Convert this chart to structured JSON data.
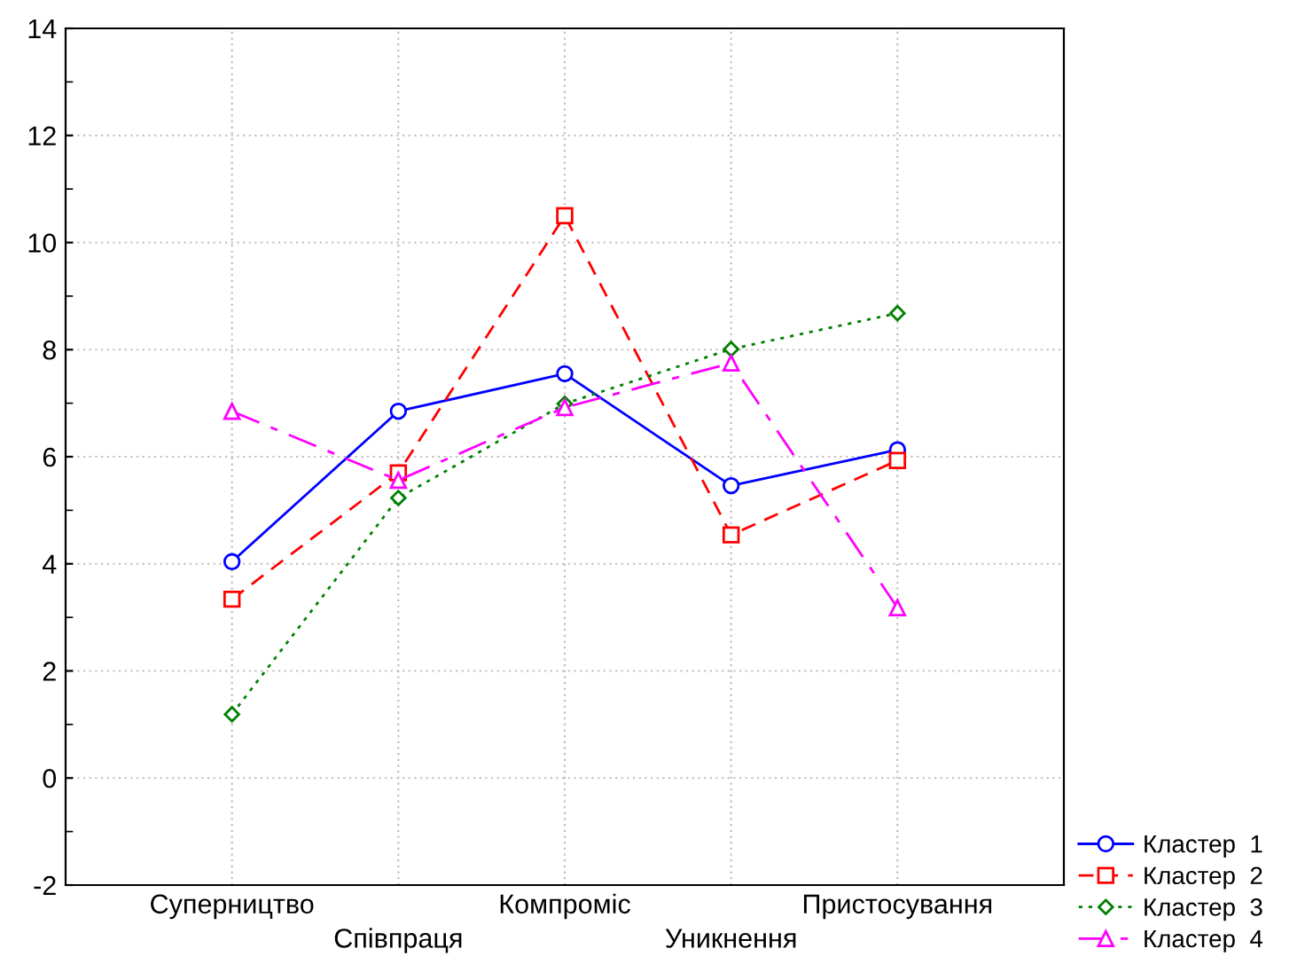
{
  "chart_data": {
    "type": "line",
    "categories": [
      "Суперництво",
      "Співпраця",
      "Компроміс",
      "Уникнення",
      "Пристосування"
    ],
    "series": [
      {
        "name": "Кластер  1",
        "color": "#0000ff",
        "marker": "circle",
        "line_style": "solid",
        "values": [
          4.04,
          6.85,
          7.55,
          5.46,
          6.13
        ]
      },
      {
        "name": "Кластер  2",
        "color": "#ff0000",
        "marker": "square",
        "line_style": "dashed",
        "values": [
          3.34,
          5.7,
          10.5,
          4.54,
          5.93
        ]
      },
      {
        "name": "Кластер  3",
        "color": "#008000",
        "marker": "diamond",
        "line_style": "dotted",
        "values": [
          1.19,
          5.23,
          6.99,
          8.01,
          8.68
        ]
      },
      {
        "name": "Кластер  4",
        "color": "#ff00ff",
        "marker": "triangle",
        "line_style": "dashdot",
        "values": [
          6.85,
          5.56,
          6.92,
          7.75,
          3.18
        ]
      }
    ],
    "ylim": [
      -2,
      14
    ],
    "yticks": [
      -2,
      0,
      2,
      4,
      6,
      8,
      10,
      12,
      14
    ],
    "grid": true,
    "legend": "bottom right"
  }
}
